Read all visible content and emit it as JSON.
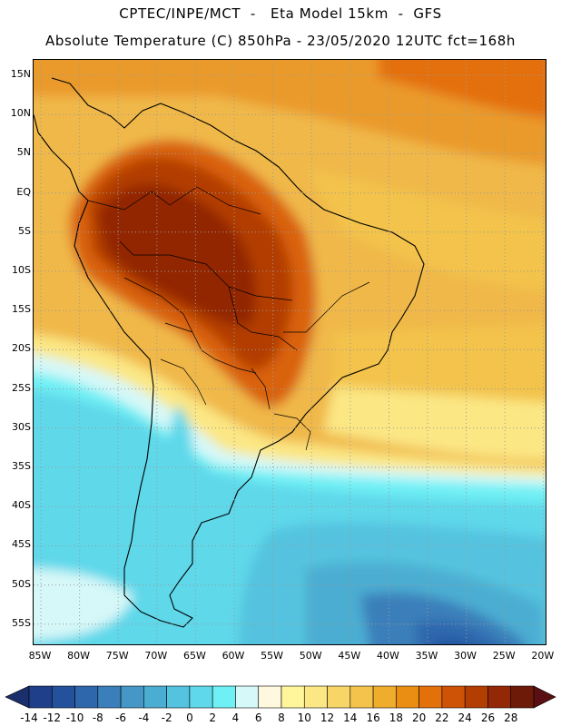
{
  "header": {
    "line1": "CPTEC/INPE/MCT  -   Eta Model 15km  -  GFS",
    "line2": "Absolute Temperature (C) 850hPa - 23/05/2020 12UTC fct=168h"
  },
  "axes": {
    "lat_labels": [
      "15N",
      "10N",
      "5N",
      "EQ",
      "5S",
      "10S",
      "15S",
      "20S",
      "25S",
      "30S",
      "35S",
      "40S",
      "45S",
      "50S",
      "55S"
    ],
    "lon_labels": [
      "85W",
      "80W",
      "75W",
      "70W",
      "65W",
      "60W",
      "55W",
      "50W",
      "45W",
      "40W",
      "35W",
      "30W",
      "25W",
      "20W"
    ]
  },
  "colorbar": {
    "ticks": [
      "-14",
      "-12",
      "-10",
      "-8",
      "-6",
      "-4",
      "-2",
      "0",
      "2",
      "4",
      "6",
      "8",
      "10",
      "12",
      "14",
      "16",
      "18",
      "20",
      "22",
      "24",
      "26",
      "28"
    ],
    "colors": [
      "#1f3f8a",
      "#24519c",
      "#2f67ad",
      "#3a7fba",
      "#4497c7",
      "#4cadd2",
      "#54c3df",
      "#5ed8ea",
      "#6ff0f5",
      "#d7f8f8",
      "#fff7de",
      "#fff59a",
      "#fbe784",
      "#f7d567",
      "#f3c34c",
      "#efad2d",
      "#ea8e13",
      "#e4700a",
      "#cf5305",
      "#b33e02",
      "#922806",
      "#6d1a08"
    ],
    "left_end_color": "#1a2f6b",
    "right_end_color": "#5a0f12"
  }
}
